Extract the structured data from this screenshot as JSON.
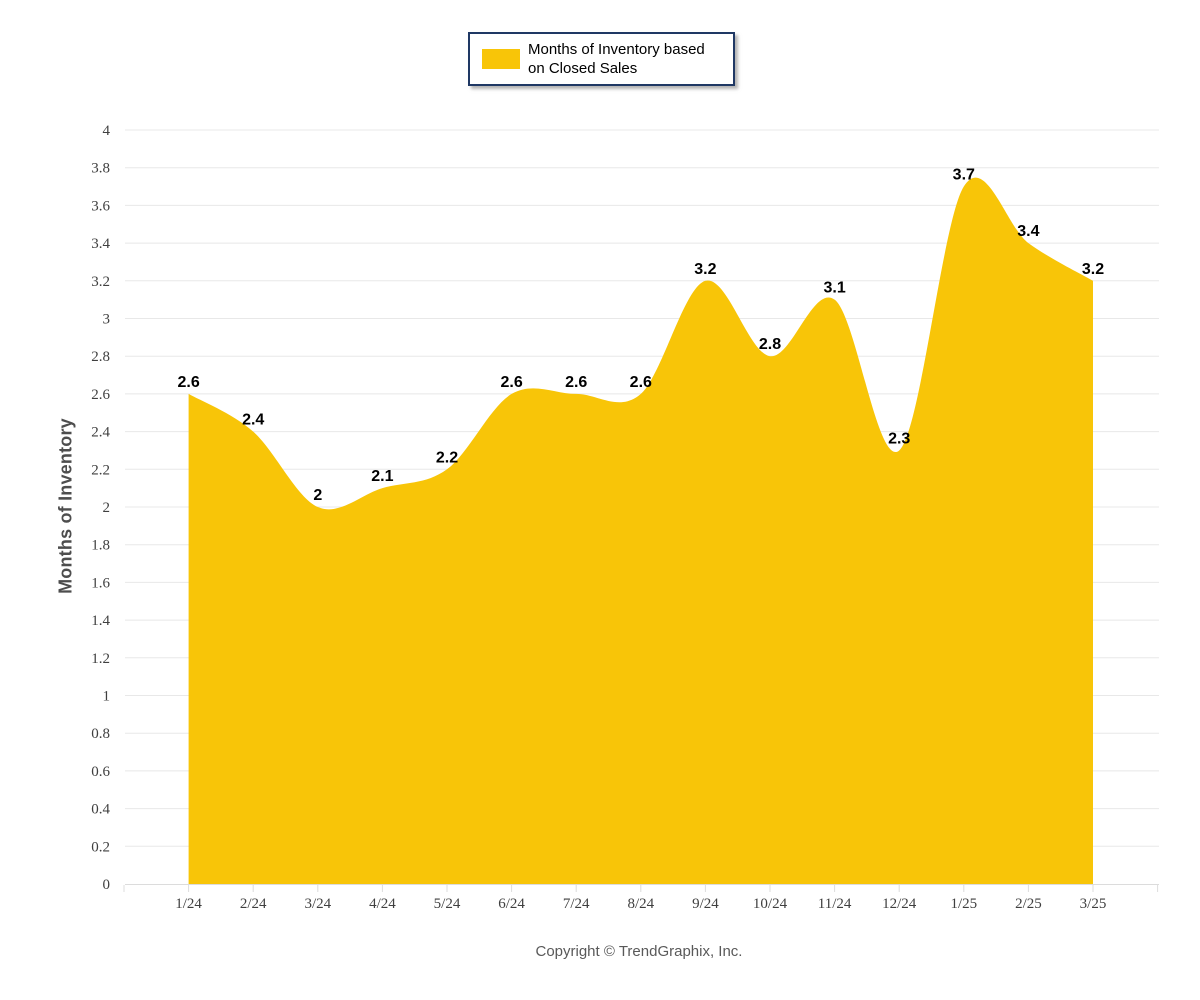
{
  "chart_data": {
    "type": "area",
    "title": "",
    "series_name": "Months of Inventory based on Closed Sales",
    "categories": [
      "1/24",
      "2/24",
      "3/24",
      "4/24",
      "5/24",
      "6/24",
      "7/24",
      "8/24",
      "9/24",
      "10/24",
      "11/24",
      "12/24",
      "1/25",
      "2/25",
      "3/25"
    ],
    "values": [
      2.6,
      2.4,
      2,
      2.1,
      2.2,
      2.6,
      2.6,
      2.6,
      3.2,
      2.8,
      3.1,
      2.3,
      3.7,
      3.4,
      3.2
    ],
    "data_labels": [
      "2.6",
      "2.4",
      "2",
      "2.1",
      "2.2",
      "2.6",
      "2.6",
      "2.6",
      "3.2",
      "2.8",
      "3.1",
      "2.3",
      "3.7",
      "3.4",
      "3.2"
    ],
    "xlabel": "",
    "ylabel": "Months of Inventory",
    "ylim": [
      0,
      4
    ],
    "ytick_labels": [
      "0",
      "0.2",
      "0.4",
      "0.6",
      "0.8",
      "1",
      "1.2",
      "1.4",
      "1.6",
      "1.8",
      "2",
      "2.2",
      "2.4",
      "2.6",
      "2.8",
      "3",
      "3.2",
      "3.4",
      "3.6",
      "3.8",
      "4"
    ],
    "grid": true,
    "smooth": true,
    "legend_position": "top-center",
    "colors": {
      "area_fill": "#F8C508",
      "data_label": "#000000",
      "grid_line": "#E8E8E8",
      "axis_line": "#DCDCDC",
      "tick_label": "#3F3F3F",
      "legend_border": "#1F3864",
      "axis_title": "#4D4D4D",
      "copyright": "#595959"
    }
  },
  "legend": {
    "label": "Months of Inventory based on Closed Sales"
  },
  "footer": {
    "copyright": "Copyright © TrendGraphix, Inc."
  }
}
